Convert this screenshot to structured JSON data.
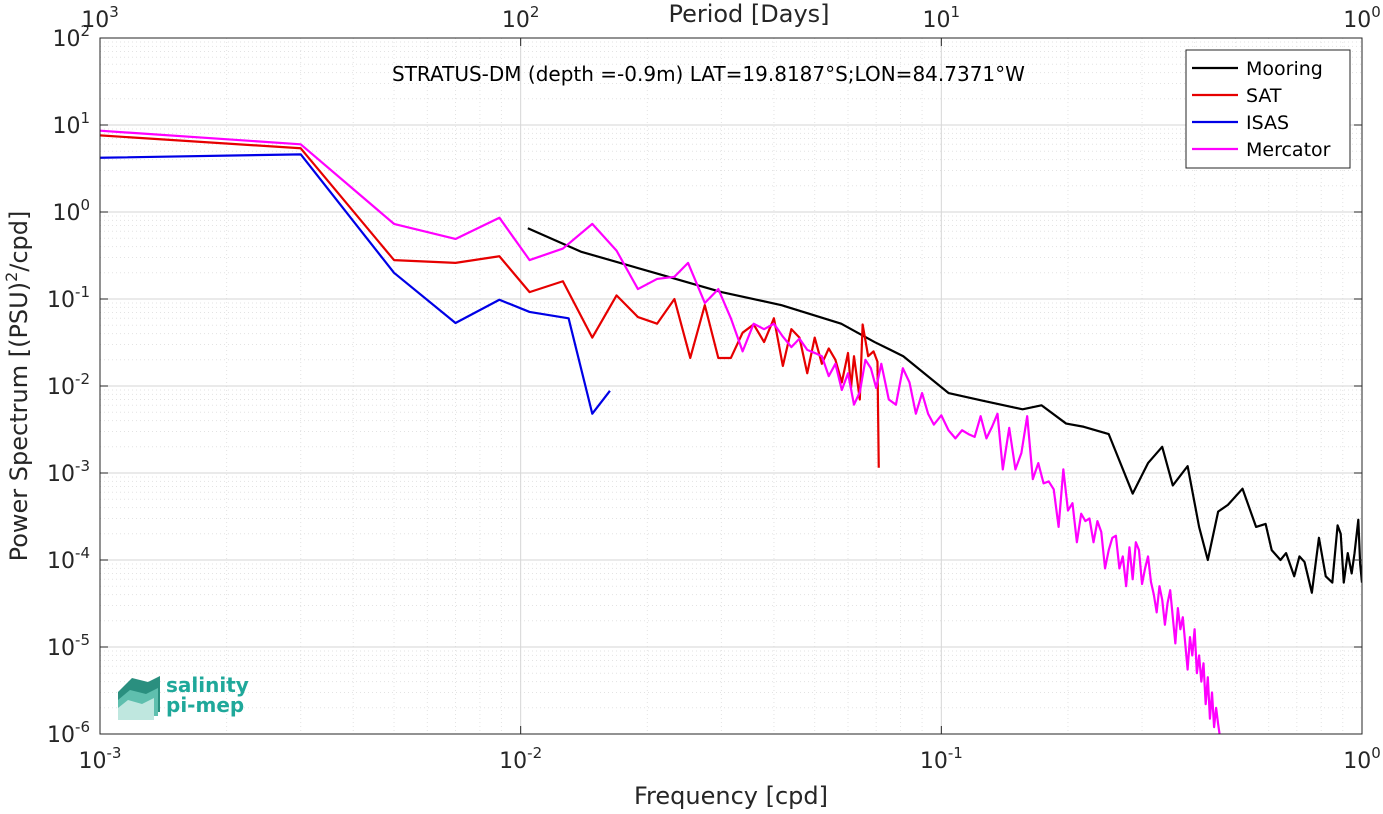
{
  "chart_data": {
    "type": "line",
    "title": "STRATUS-DM (depth =-0.9m) LAT=19.8187°S;LON=84.7371°W",
    "xlabel": "Frequency [cpd]",
    "ylabel": "Power Spectrum [(PSU)",
    "ylabel_sup": "2",
    "ylabel_tail": "/cpd]",
    "top_xlabel": "Period [Days]",
    "xscale": "log",
    "yscale": "log",
    "xlim": [
      0.001,
      1
    ],
    "ylim": [
      1e-06,
      100
    ],
    "grid": true,
    "minor_grid": true,
    "legend_position": "top-right",
    "x_ticks": [
      {
        "value": 0.001,
        "base": "10",
        "exp": "-3"
      },
      {
        "value": 0.01,
        "base": "10",
        "exp": "-2"
      },
      {
        "value": 0.1,
        "base": "10",
        "exp": "-1"
      },
      {
        "value": 1,
        "base": "10",
        "exp": "0"
      }
    ],
    "top_ticks": [
      {
        "value": 0.001,
        "base": "10",
        "exp": "3"
      },
      {
        "value": 0.01,
        "base": "10",
        "exp": "2"
      },
      {
        "value": 0.1,
        "base": "10",
        "exp": "1"
      },
      {
        "value": 1,
        "base": "10",
        "exp": "0"
      }
    ],
    "y_ticks": [
      {
        "value": 1e-06,
        "base": "10",
        "exp": "-6"
      },
      {
        "value": 1e-05,
        "base": "10",
        "exp": "-5"
      },
      {
        "value": 0.0001,
        "base": "10",
        "exp": "-4"
      },
      {
        "value": 0.001,
        "base": "10",
        "exp": "-3"
      },
      {
        "value": 0.01,
        "base": "10",
        "exp": "-2"
      },
      {
        "value": 0.1,
        "base": "10",
        "exp": "-1"
      },
      {
        "value": 1,
        "base": "10",
        "exp": "0"
      },
      {
        "value": 10,
        "base": "10",
        "exp": "1"
      },
      {
        "value": 100,
        "base": "10",
        "exp": "2"
      }
    ],
    "series": [
      {
        "name": "Mooring",
        "color": "#000000",
        "points": [
          [
            0.0104,
            0.65
          ],
          [
            0.0139,
            0.35
          ],
          [
            0.0208,
            0.2
          ],
          [
            0.03,
            0.12
          ],
          [
            0.0417,
            0.085
          ],
          [
            0.0578,
            0.052
          ],
          [
            0.0694,
            0.032
          ],
          [
            0.0812,
            0.022
          ],
          [
            0.104,
            0.0083
          ],
          [
            0.125,
            0.0068
          ],
          [
            0.156,
            0.0054
          ],
          [
            0.173,
            0.006
          ],
          [
            0.198,
            0.0037
          ],
          [
            0.218,
            0.0034
          ],
          [
            0.25,
            0.0028
          ],
          [
            0.285,
            0.00058
          ],
          [
            0.31,
            0.0013
          ],
          [
            0.335,
            0.002
          ],
          [
            0.355,
            0.00072
          ],
          [
            0.385,
            0.0012
          ],
          [
            0.41,
            0.00024
          ],
          [
            0.43,
            0.0001
          ],
          [
            0.455,
            0.00036
          ],
          [
            0.48,
            0.00043
          ],
          [
            0.52,
            0.00066
          ],
          [
            0.56,
            0.00024
          ],
          [
            0.59,
            0.00026
          ],
          [
            0.61,
            0.00013
          ],
          [
            0.64,
            0.0001
          ],
          [
            0.66,
            0.00012
          ],
          [
            0.69,
            6.5e-05
          ],
          [
            0.71,
            0.00011
          ],
          [
            0.73,
            9.5e-05
          ],
          [
            0.76,
            4.2e-05
          ],
          [
            0.79,
            0.00018
          ],
          [
            0.82,
            6.5e-05
          ],
          [
            0.85,
            5.5e-05
          ],
          [
            0.875,
            0.00025
          ],
          [
            0.89,
            0.0002
          ],
          [
            0.905,
            5.5e-05
          ],
          [
            0.925,
            0.00012
          ],
          [
            0.945,
            7e-05
          ],
          [
            0.96,
            0.00012
          ],
          [
            0.98,
            0.00029
          ],
          [
            0.99,
            9e-05
          ],
          [
            1.0,
            5.5e-05
          ]
        ]
      },
      {
        "name": "SAT",
        "color": "#e60000",
        "points": [
          [
            0.001,
            7.6
          ],
          [
            0.003,
            5.4
          ],
          [
            0.005,
            0.28
          ],
          [
            0.007,
            0.26
          ],
          [
            0.0089,
            0.31
          ],
          [
            0.0105,
            0.12
          ],
          [
            0.0126,
            0.16
          ],
          [
            0.0148,
            0.036
          ],
          [
            0.0169,
            0.11
          ],
          [
            0.019,
            0.062
          ],
          [
            0.0211,
            0.052
          ],
          [
            0.0232,
            0.1
          ],
          [
            0.0253,
            0.021
          ],
          [
            0.0274,
            0.085
          ],
          [
            0.0295,
            0.021
          ],
          [
            0.0316,
            0.021
          ],
          [
            0.0337,
            0.041
          ],
          [
            0.0358,
            0.051
          ],
          [
            0.0379,
            0.032
          ],
          [
            0.04,
            0.06
          ],
          [
            0.042,
            0.017
          ],
          [
            0.044,
            0.045
          ],
          [
            0.046,
            0.036
          ],
          [
            0.048,
            0.014
          ],
          [
            0.05,
            0.036
          ],
          [
            0.052,
            0.018
          ],
          [
            0.054,
            0.027
          ],
          [
            0.056,
            0.02
          ],
          [
            0.058,
            0.011
          ],
          [
            0.06,
            0.024
          ],
          [
            0.061,
            0.0095
          ],
          [
            0.062,
            0.022
          ],
          [
            0.064,
            0.007
          ],
          [
            0.065,
            0.051
          ],
          [
            0.067,
            0.022
          ],
          [
            0.069,
            0.025
          ],
          [
            0.0705,
            0.019
          ],
          [
            0.071,
            0.00115
          ]
        ]
      },
      {
        "name": "ISAS",
        "color": "#0000e6",
        "points": [
          [
            0.001,
            4.2
          ],
          [
            0.003,
            4.6
          ],
          [
            0.005,
            0.2
          ],
          [
            0.007,
            0.053
          ],
          [
            0.0089,
            0.098
          ],
          [
            0.0105,
            0.071
          ],
          [
            0.013,
            0.06
          ],
          [
            0.0148,
            0.0048
          ],
          [
            0.0163,
            0.0088
          ]
        ]
      },
      {
        "name": "Mercator",
        "color": "#ff00ff",
        "points": [
          [
            0.001,
            8.6
          ],
          [
            0.003,
            6.0
          ],
          [
            0.005,
            0.73
          ],
          [
            0.007,
            0.49
          ],
          [
            0.0089,
            0.86
          ],
          [
            0.0105,
            0.28
          ],
          [
            0.0126,
            0.38
          ],
          [
            0.0148,
            0.73
          ],
          [
            0.0169,
            0.36
          ],
          [
            0.019,
            0.13
          ],
          [
            0.0211,
            0.17
          ],
          [
            0.0232,
            0.18
          ],
          [
            0.025,
            0.26
          ],
          [
            0.0274,
            0.09
          ],
          [
            0.0295,
            0.13
          ],
          [
            0.0316,
            0.06
          ],
          [
            0.0337,
            0.025
          ],
          [
            0.0358,
            0.052
          ],
          [
            0.0379,
            0.045
          ],
          [
            0.04,
            0.052
          ],
          [
            0.042,
            0.037
          ],
          [
            0.044,
            0.028
          ],
          [
            0.046,
            0.035
          ],
          [
            0.048,
            0.026
          ],
          [
            0.05,
            0.024
          ],
          [
            0.052,
            0.022
          ],
          [
            0.054,
            0.013
          ],
          [
            0.056,
            0.018
          ],
          [
            0.058,
            0.009
          ],
          [
            0.06,
            0.014
          ],
          [
            0.062,
            0.0061
          ],
          [
            0.064,
            0.0085
          ],
          [
            0.066,
            0.02
          ],
          [
            0.068,
            0.016
          ],
          [
            0.07,
            0.0095
          ],
          [
            0.072,
            0.018
          ],
          [
            0.075,
            0.007
          ],
          [
            0.078,
            0.0061
          ],
          [
            0.081,
            0.016
          ],
          [
            0.084,
            0.011
          ],
          [
            0.087,
            0.0048
          ],
          [
            0.09,
            0.0083
          ],
          [
            0.093,
            0.0048
          ],
          [
            0.096,
            0.0036
          ],
          [
            0.1,
            0.0046
          ],
          [
            0.104,
            0.0031
          ],
          [
            0.108,
            0.0025
          ],
          [
            0.112,
            0.0031
          ],
          [
            0.116,
            0.0028
          ],
          [
            0.12,
            0.0026
          ],
          [
            0.124,
            0.0045
          ],
          [
            0.128,
            0.0025
          ],
          [
            0.132,
            0.0034
          ],
          [
            0.136,
            0.0048
          ],
          [
            0.14,
            0.0011
          ],
          [
            0.145,
            0.0033
          ],
          [
            0.15,
            0.0011
          ],
          [
            0.155,
            0.0017
          ],
          [
            0.16,
            0.0045
          ],
          [
            0.165,
            0.00085
          ],
          [
            0.17,
            0.0013
          ],
          [
            0.175,
            0.00076
          ],
          [
            0.18,
            0.0008
          ],
          [
            0.185,
            0.00065
          ],
          [
            0.19,
            0.00024
          ],
          [
            0.195,
            0.0011
          ],
          [
            0.2,
            0.00037
          ],
          [
            0.205,
            0.00045
          ],
          [
            0.21,
            0.00016
          ],
          [
            0.215,
            0.00034
          ],
          [
            0.22,
            0.00028
          ],
          [
            0.225,
            0.0003
          ],
          [
            0.23,
            0.00016
          ],
          [
            0.235,
            0.00028
          ],
          [
            0.24,
            0.00021
          ],
          [
            0.245,
            8e-05
          ],
          [
            0.25,
            0.00013
          ],
          [
            0.255,
            0.00018
          ],
          [
            0.26,
            0.00019
          ],
          [
            0.265,
            8e-05
          ],
          [
            0.27,
            0.00011
          ],
          [
            0.275,
            5e-05
          ],
          [
            0.28,
            0.00014
          ],
          [
            0.285,
            6e-05
          ],
          [
            0.29,
            0.00016
          ],
          [
            0.295,
            0.00013
          ],
          [
            0.3,
            5.3e-05
          ],
          [
            0.305,
            8e-05
          ],
          [
            0.31,
            0.00011
          ],
          [
            0.315,
            5.6e-05
          ],
          [
            0.32,
            4e-05
          ],
          [
            0.325,
            2.5e-05
          ],
          [
            0.33,
            5e-05
          ],
          [
            0.335,
            3.5e-05
          ],
          [
            0.34,
            1.8e-05
          ],
          [
            0.345,
            3.2e-05
          ],
          [
            0.35,
            4.5e-05
          ],
          [
            0.355,
            2.2e-05
          ],
          [
            0.36,
            1.1e-05
          ],
          [
            0.365,
            2.8e-05
          ],
          [
            0.37,
            1.6e-05
          ],
          [
            0.375,
            2.2e-05
          ],
          [
            0.38,
            1.1e-05
          ],
          [
            0.385,
            5.5e-06
          ],
          [
            0.39,
            1.3e-05
          ],
          [
            0.395,
            8e-06
          ],
          [
            0.4,
            1.6e-05
          ],
          [
            0.405,
            5e-06
          ],
          [
            0.41,
            8e-06
          ],
          [
            0.415,
            4e-06
          ],
          [
            0.42,
            6.5e-06
          ],
          [
            0.425,
            2.2e-06
          ],
          [
            0.43,
            4.5e-06
          ],
          [
            0.435,
            1.5e-06
          ],
          [
            0.44,
            3e-06
          ],
          [
            0.445,
            1.2e-06
          ],
          [
            0.45,
            2e-06
          ],
          [
            0.455,
            1.3e-06
          ],
          [
            0.46,
            9e-07
          ]
        ]
      }
    ]
  },
  "logo": {
    "line1": "salinity",
    "line2": "pi-mep"
  }
}
